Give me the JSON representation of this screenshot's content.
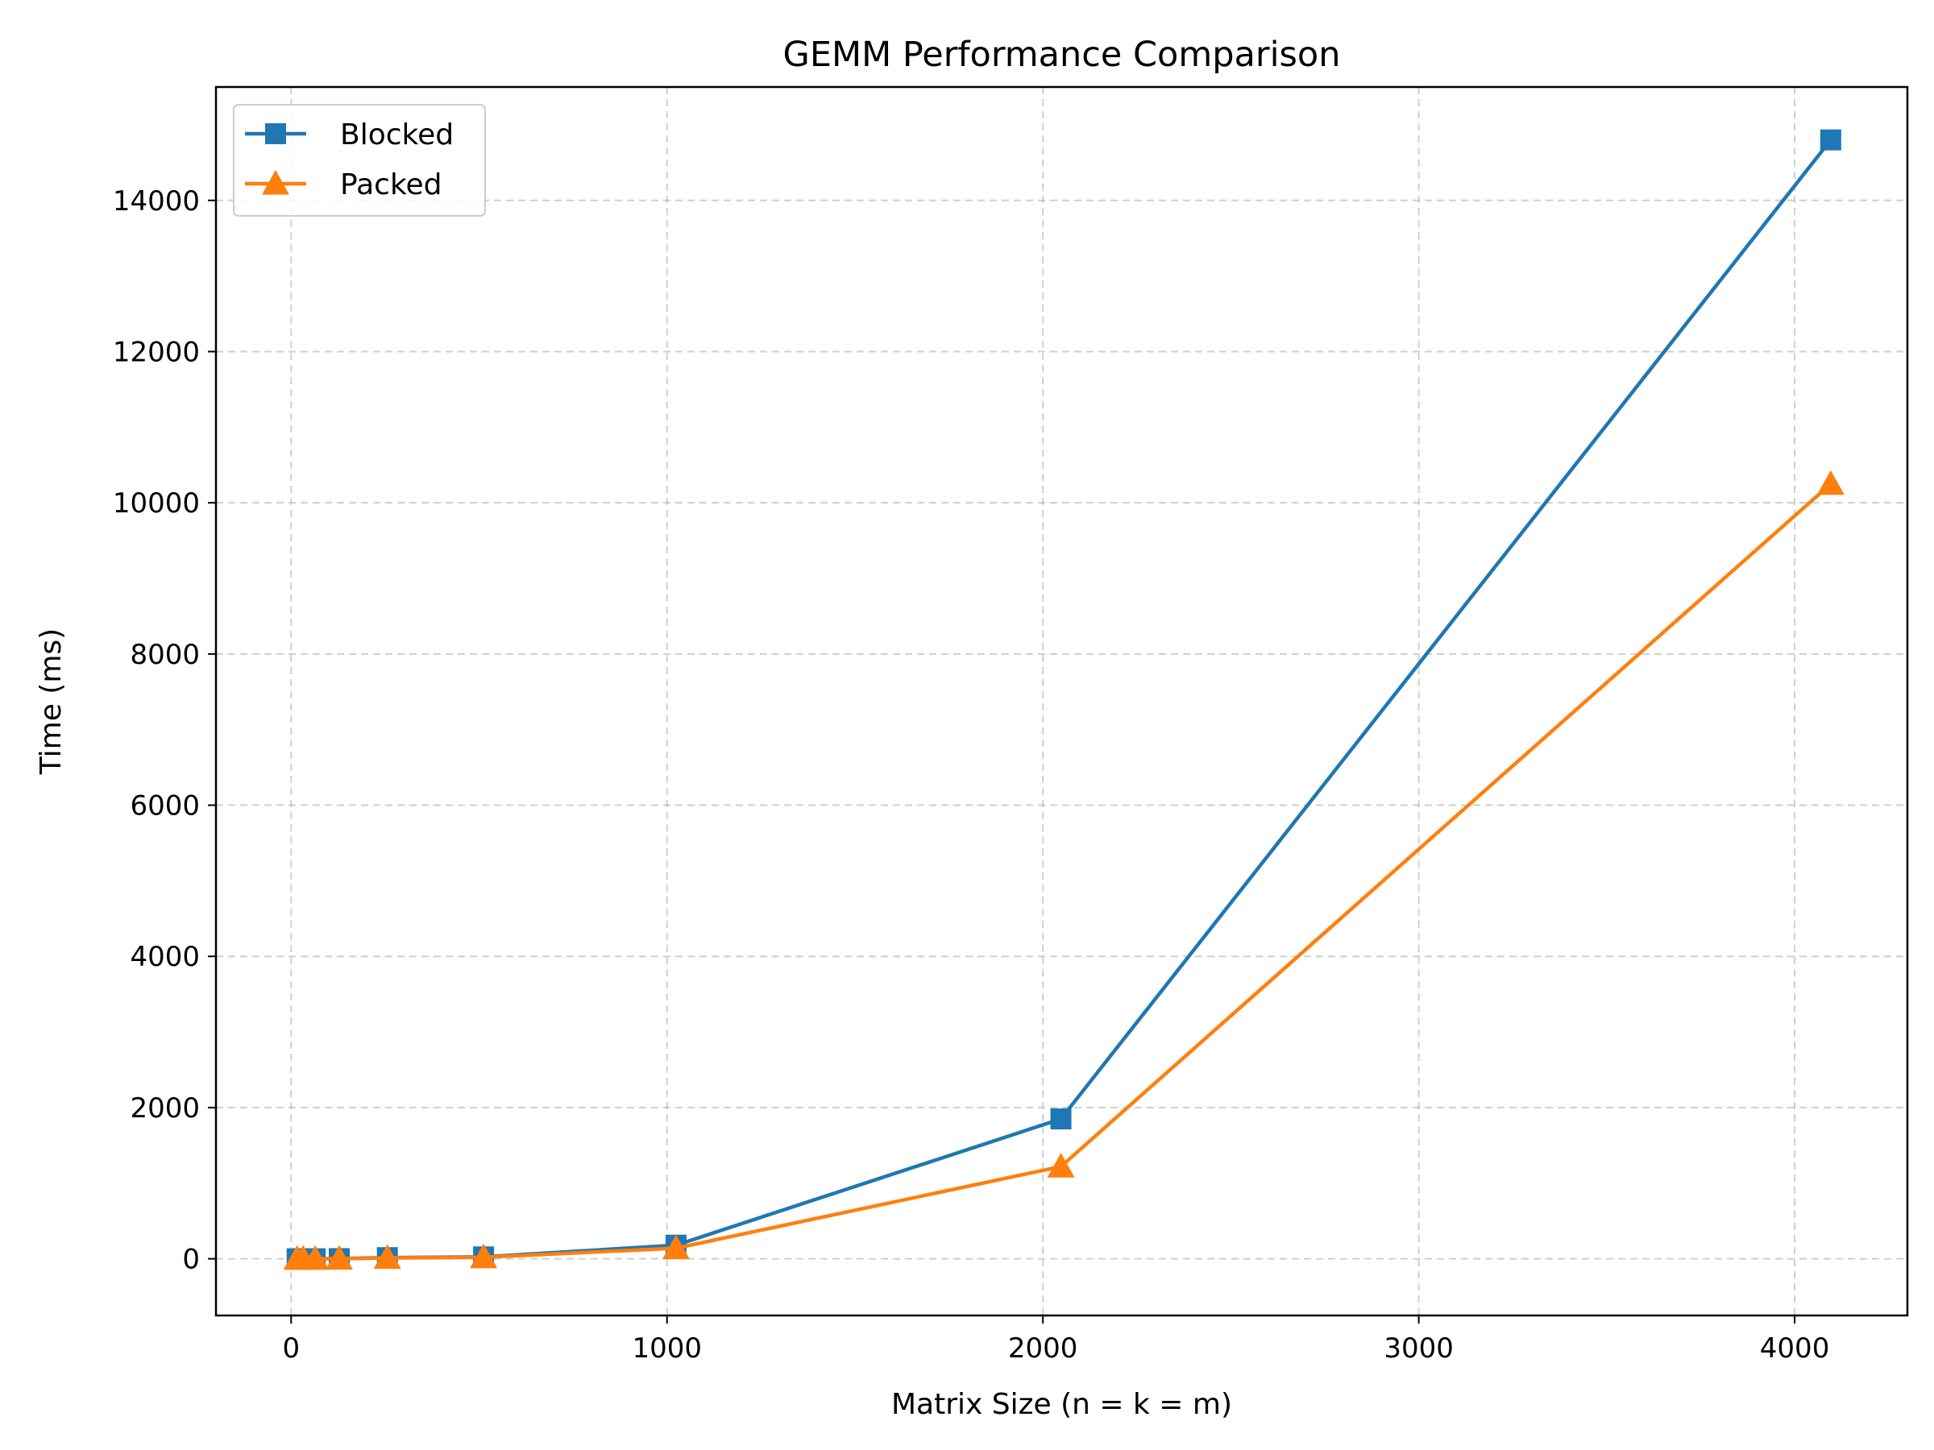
{
  "chart_data": {
    "type": "line",
    "title": "GEMM Performance Comparison",
    "xlabel": "Matrix Size (n = k = m)",
    "ylabel": "Time (ms)",
    "xlim": [
      -200,
      4300
    ],
    "ylim": [
      -750,
      15500
    ],
    "xticks": [
      0,
      1000,
      2000,
      3000,
      4000
    ],
    "yticks": [
      0,
      2000,
      4000,
      6000,
      8000,
      10000,
      12000,
      14000
    ],
    "grid": true,
    "legend_position": "upper-left",
    "x": [
      16,
      32,
      64,
      128,
      256,
      512,
      1024,
      2048,
      4096
    ],
    "series": [
      {
        "name": "Blocked",
        "color": "#1f77b4",
        "marker": "square",
        "values": [
          0.01,
          0.05,
          0.3,
          2,
          15,
          25,
          180,
          1850,
          14800
        ]
      },
      {
        "name": "Packed",
        "color": "#ff7f0e",
        "marker": "triangle",
        "values": [
          0.01,
          0.04,
          0.25,
          1.6,
          11,
          20,
          140,
          1220,
          10250
        ]
      }
    ]
  }
}
